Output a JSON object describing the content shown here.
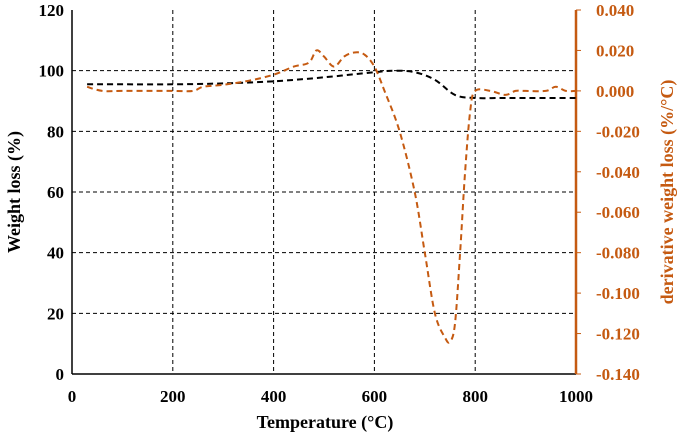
{
  "chart_data": {
    "type": "line",
    "xlabel": "Temperature (°C)",
    "ylabel": "Weight loss (%)",
    "y2label": "derivative weight loss (%/°C)",
    "xlim": [
      0,
      1000
    ],
    "ylim": [
      0,
      120
    ],
    "y2lim": [
      -0.14,
      0.04
    ],
    "x_ticks": [
      "0",
      "200",
      "400",
      "600",
      "800",
      "1000"
    ],
    "y_ticks": [
      "0",
      "20",
      "40",
      "60",
      "80",
      "100",
      "120"
    ],
    "y2_ticks": [
      "-0.140",
      "-0.120",
      "-0.100",
      "-0.080",
      "-0.060",
      "-0.040",
      "-0.020",
      "0.000",
      "0.020",
      "0.040"
    ],
    "grid": true,
    "colors": {
      "left_axis": "#000000",
      "right_axis": "#c55a11",
      "grid": "#000000"
    },
    "series": [
      {
        "axis": "left",
        "color": "#000000",
        "x": [
          30,
          100,
          200,
          300,
          400,
          500,
          600,
          640,
          680,
          720,
          760,
          800,
          850,
          900,
          1000
        ],
        "y": [
          95.5,
          95.5,
          95.5,
          95.8,
          96.5,
          97.8,
          99.5,
          100,
          99.5,
          97,
          92,
          91,
          91,
          91,
          91
        ]
      },
      {
        "axis": "right",
        "color": "#c55a11",
        "x": [
          30,
          60,
          100,
          150,
          200,
          240,
          260,
          300,
          350,
          400,
          440,
          470,
          485,
          500,
          520,
          540,
          560,
          580,
          600,
          620,
          650,
          680,
          700,
          720,
          740,
          750,
          760,
          770,
          780,
          790,
          800,
          830,
          860,
          880,
          900,
          940,
          960,
          980,
          1000
        ],
        "y": [
          0.002,
          0.0,
          0.0,
          0.0,
          0.0,
          0.0,
          0.002,
          0.003,
          0.005,
          0.008,
          0.012,
          0.014,
          0.02,
          0.017,
          0.012,
          0.017,
          0.019,
          0.018,
          0.012,
          0.0,
          -0.02,
          -0.05,
          -0.08,
          -0.11,
          -0.122,
          -0.124,
          -0.115,
          -0.08,
          -0.04,
          -0.01,
          0.0,
          0.0,
          -0.002,
          0.0,
          0.0,
          0.0,
          0.002,
          0.0,
          0.0
        ]
      }
    ]
  }
}
